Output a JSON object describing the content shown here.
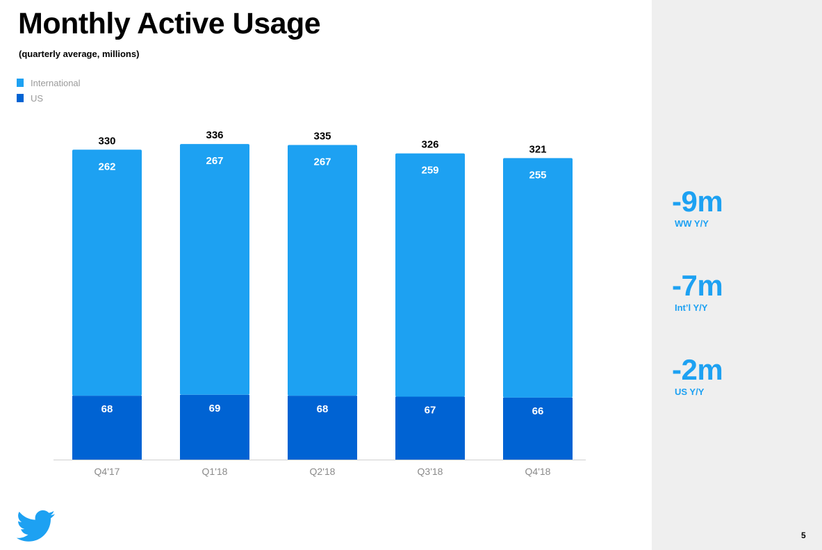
{
  "header": {
    "title": "Monthly Active Usage",
    "subtitle": "(quarterly average, millions)"
  },
  "legend": {
    "international": "International",
    "us": "US"
  },
  "colors": {
    "international": "#1da1f2",
    "us": "#0063d3",
    "accent": "#1da1f2",
    "panel": "#efefef"
  },
  "chart_data": {
    "type": "bar",
    "stacked": true,
    "categories": [
      "Q4'17",
      "Q1'18",
      "Q2'18",
      "Q3'18",
      "Q4'18"
    ],
    "series": [
      {
        "name": "US",
        "values": [
          68,
          69,
          68,
          67,
          66
        ]
      },
      {
        "name": "International",
        "values": [
          262,
          267,
          267,
          259,
          255
        ]
      }
    ],
    "totals": [
      330,
      336,
      335,
      326,
      321
    ],
    "title": "Monthly Active Usage",
    "subtitle": "(quarterly average, millions)",
    "xlabel": "",
    "ylabel": "",
    "ylim": [
      0,
      345
    ],
    "grid": false,
    "legend_position": "top-left"
  },
  "stats": [
    {
      "value": "-9m",
      "label": "WW Y/Y"
    },
    {
      "value": "-7m",
      "label": "Int’l Y/Y"
    },
    {
      "value": "-2m",
      "label": "US Y/Y"
    }
  ],
  "logo_icon": "twitter-bird-icon",
  "page_number": "5"
}
